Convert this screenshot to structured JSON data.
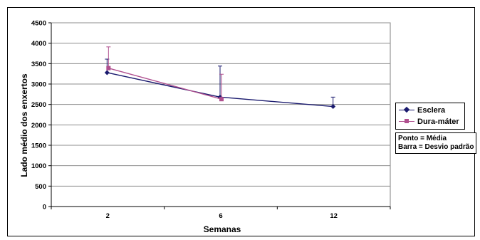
{
  "chart_data": {
    "type": "line",
    "title": "",
    "xlabel": "Semanas",
    "ylabel": "Lado médio dos enxertos",
    "categories": [
      "2",
      "6",
      "12"
    ],
    "ylim": [
      0,
      4500
    ],
    "yticks": [
      "0",
      "500",
      "1000",
      "1500",
      "2000",
      "2500",
      "3000",
      "3500",
      "4000",
      "4500"
    ],
    "grid": true,
    "legend_position": "right",
    "series": [
      {
        "name": "Esclera",
        "color": "#1a1a6e",
        "marker": "diamond",
        "values": [
          3280,
          2680,
          2450
        ],
        "error_upper": [
          3610,
          3440,
          2680
        ]
      },
      {
        "name": "Dura-máter",
        "color": "#b0508f",
        "marker": "square",
        "values": [
          3390,
          2630,
          null
        ],
        "error_upper": [
          3910,
          3240,
          null
        ]
      }
    ],
    "note": [
      "Ponto = Média",
      "Barra = Desvio padrão"
    ]
  }
}
